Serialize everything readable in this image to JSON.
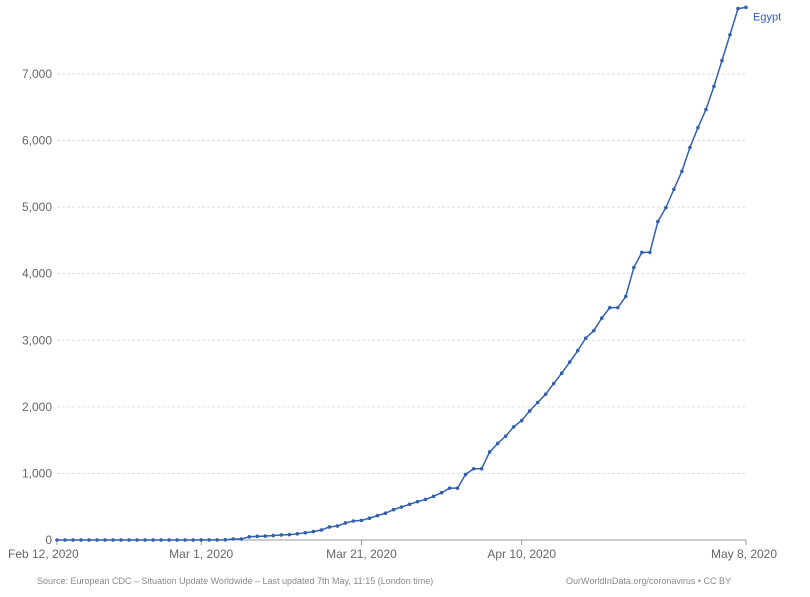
{
  "chart_data": {
    "type": "line",
    "title": "",
    "xlabel": "",
    "ylabel": "",
    "x_start": "2020-02-12",
    "x_end": "2020-05-08",
    "x_ticks": [
      "Feb 12, 2020",
      "Mar 1, 2020",
      "Mar 21, 2020",
      "Apr 10, 2020",
      "May 8, 2020"
    ],
    "x_tick_dates": [
      "2020-02-12",
      "2020-03-01",
      "2020-03-21",
      "2020-04-10",
      "2020-05-08"
    ],
    "y_ticks": [
      "0",
      "1,000",
      "2,000",
      "3,000",
      "4,000",
      "5,000",
      "6,000",
      "7,000"
    ],
    "y_tick_values": [
      0,
      1000,
      2000,
      3000,
      4000,
      5000,
      6000,
      7000
    ],
    "ylim": [
      0,
      7900
    ],
    "grid": true,
    "series": [
      {
        "name": "Egypt",
        "color": "#3360a9",
        "x": [
          "2020-02-12",
          "2020-02-13",
          "2020-02-14",
          "2020-02-15",
          "2020-02-16",
          "2020-02-17",
          "2020-02-18",
          "2020-02-19",
          "2020-02-20",
          "2020-02-21",
          "2020-02-22",
          "2020-02-23",
          "2020-02-24",
          "2020-02-25",
          "2020-02-26",
          "2020-02-27",
          "2020-02-28",
          "2020-02-29",
          "2020-03-01",
          "2020-03-02",
          "2020-03-03",
          "2020-03-04",
          "2020-03-05",
          "2020-03-06",
          "2020-03-07",
          "2020-03-08",
          "2020-03-09",
          "2020-03-10",
          "2020-03-11",
          "2020-03-12",
          "2020-03-13",
          "2020-03-14",
          "2020-03-15",
          "2020-03-16",
          "2020-03-17",
          "2020-03-18",
          "2020-03-19",
          "2020-03-20",
          "2020-03-21",
          "2020-03-22",
          "2020-03-23",
          "2020-03-24",
          "2020-03-25",
          "2020-03-26",
          "2020-03-27",
          "2020-03-28",
          "2020-03-29",
          "2020-03-30",
          "2020-03-31",
          "2020-04-01",
          "2020-04-02",
          "2020-04-03",
          "2020-04-04",
          "2020-04-05",
          "2020-04-06",
          "2020-04-07",
          "2020-04-08",
          "2020-04-09",
          "2020-04-10",
          "2020-04-11",
          "2020-04-12",
          "2020-04-13",
          "2020-04-14",
          "2020-04-15",
          "2020-04-16",
          "2020-04-17",
          "2020-04-18",
          "2020-04-19",
          "2020-04-20",
          "2020-04-21",
          "2020-04-22",
          "2020-04-23",
          "2020-04-24",
          "2020-04-25",
          "2020-04-26",
          "2020-04-27",
          "2020-04-28",
          "2020-04-29",
          "2020-04-30",
          "2020-05-01",
          "2020-05-02",
          "2020-05-03",
          "2020-05-04",
          "2020-05-05",
          "2020-05-06",
          "2020-05-07",
          "2020-05-08"
        ],
        "values": [
          0,
          0,
          0,
          0,
          0,
          0,
          0,
          0,
          0,
          0,
          0,
          0,
          0,
          0,
          0,
          0,
          0,
          0,
          2,
          2,
          2,
          3,
          15,
          15,
          48,
          55,
          59,
          67,
          76,
          80,
          93,
          109,
          126,
          150,
          196,
          210,
          256,
          285,
          294,
          327,
          366,
          402,
          456,
          495,
          536,
          576,
          609,
          656,
          710,
          779,
          779,
          985,
          1070,
          1070,
          1322,
          1450,
          1560,
          1699,
          1794,
          1939,
          2065,
          2190,
          2350,
          2505,
          2673,
          2844,
          3032,
          3144,
          3333,
          3490,
          3490,
          3659,
          4092,
          4319,
          4319,
          4782,
          4992,
          5268,
          5537,
          5895,
          6193,
          6465,
          6813,
          7201,
          7588,
          7981,
          8000
        ]
      }
    ],
    "end_label": "Egypt"
  },
  "footer": {
    "source": "Source: European CDC – Situation Update Worldwide – Last updated 7th May, 11:15 (London time)",
    "license": "OurWorldInData.org/coronavirus • CC BY"
  }
}
